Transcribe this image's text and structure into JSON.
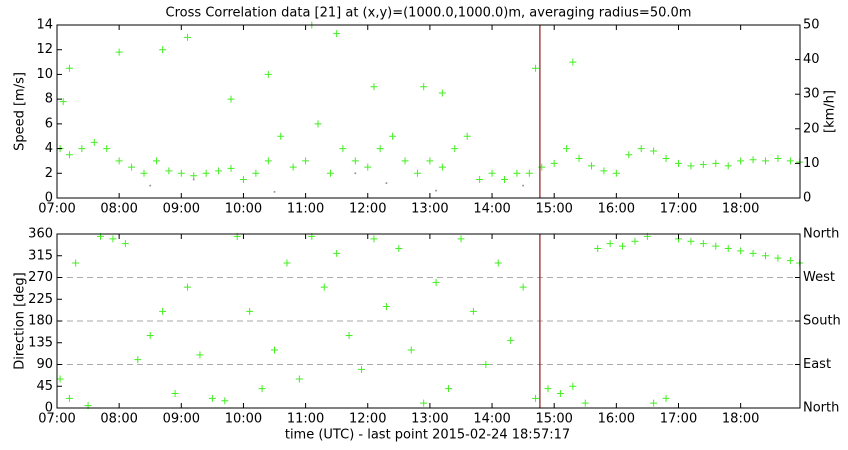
{
  "chart_data": [
    {
      "type": "scatter",
      "title": "Cross Correlation data [21] at (x,y)=(1000.0,1000.0)m, averaging radius=50.0m",
      "ylabel": "Speed [m/s]",
      "y2label": "[km/h]",
      "xlim": [
        7,
        18.955
      ],
      "xticks": [
        {
          "value": 7,
          "label": "07:00"
        },
        {
          "value": 8,
          "label": "08:00"
        },
        {
          "value": 9,
          "label": "09:00"
        },
        {
          "value": 10,
          "label": "10:00"
        },
        {
          "value": 11,
          "label": "11:00"
        },
        {
          "value": 12,
          "label": "12:00"
        },
        {
          "value": 13,
          "label": "13:00"
        },
        {
          "value": 14,
          "label": "14:00"
        },
        {
          "value": 15,
          "label": "15:00"
        },
        {
          "value": 16,
          "label": "16:00"
        },
        {
          "value": 17,
          "label": "17:00"
        },
        {
          "value": 18,
          "label": "18:00"
        }
      ],
      "ylim": [
        0,
        14
      ],
      "yticks": [
        0,
        2,
        4,
        6,
        8,
        10,
        12,
        14
      ],
      "y2lim": [
        0,
        50
      ],
      "y2ticks": [
        0,
        10,
        20,
        30,
        40,
        50
      ],
      "vline": {
        "x": 14.77,
        "color": "#8b1a1a"
      },
      "series": [
        {
          "color": "#44ee22",
          "marker": "plus",
          "x": [
            7.05,
            7.2,
            7.4,
            7.6,
            7.8,
            8.0,
            8.2,
            8.4,
            8.6,
            8.8,
            9.0,
            9.2,
            9.4,
            9.6,
            9.8,
            10.0,
            10.2,
            10.4,
            10.6,
            10.8,
            11.0,
            11.2,
            11.4,
            11.6,
            11.8,
            12.0,
            12.2,
            12.4,
            12.6,
            12.8,
            13.0,
            13.2,
            13.4,
            13.6,
            13.8,
            14.0,
            14.2,
            14.4,
            14.6,
            14.8,
            15.0,
            15.2,
            15.4,
            15.6,
            15.8,
            16.0,
            16.2,
            16.4,
            16.6,
            16.8,
            17.0,
            17.2,
            17.4,
            17.6,
            17.8,
            18.0,
            18.2,
            18.4,
            18.6,
            18.8,
            18.95
          ],
          "values": [
            4,
            3.5,
            4,
            4.5,
            4,
            3,
            2.5,
            2,
            3,
            2.2,
            2,
            1.8,
            2,
            2.2,
            2.4,
            1.5,
            2,
            3,
            5,
            2.5,
            3,
            6,
            2,
            4,
            3,
            2.5,
            4,
            5,
            3,
            2,
            3,
            2.5,
            4,
            5,
            1.5,
            2,
            1.5,
            2,
            2,
            2.5,
            2.8,
            4,
            3.2,
            2.6,
            2.2,
            2,
            3.5,
            4,
            3.8,
            3.2,
            2.8,
            2.6,
            2.7,
            2.8,
            2.6,
            3,
            3.1,
            3,
            3.2,
            3,
            2.9
          ]
        },
        {
          "color": "#44ee22",
          "marker": "plus",
          "x": [
            7.2,
            8.0,
            8.7,
            9.1,
            10.4,
            11.1,
            11.5,
            12.1,
            13.2,
            14.7,
            15.3,
            7.1,
            9.8,
            12.9
          ],
          "values": [
            10.5,
            11.8,
            12,
            13,
            10,
            14,
            13.3,
            9,
            8.5,
            10.5,
            11,
            7.8,
            8,
            9
          ]
        },
        {
          "color": "#999999",
          "marker": "dot",
          "x": [
            8.5,
            10.5,
            12.3,
            13.1,
            14.5,
            9.2,
            11.8
          ],
          "values": [
            1,
            0.5,
            1.2,
            0.6,
            1,
            1.5,
            2
          ]
        }
      ]
    },
    {
      "type": "scatter",
      "ylabel": "Direction [deg]",
      "xlabel": "time (UTC) - last point 2015-02-24 18:57:17",
      "xlim": [
        7,
        18.955
      ],
      "xticks": [
        {
          "value": 7,
          "label": "07:00"
        },
        {
          "value": 8,
          "label": "08:00"
        },
        {
          "value": 9,
          "label": "09:00"
        },
        {
          "value": 10,
          "label": "10:00"
        },
        {
          "value": 11,
          "label": "11:00"
        },
        {
          "value": 12,
          "label": "12:00"
        },
        {
          "value": 13,
          "label": "13:00"
        },
        {
          "value": 14,
          "label": "14:00"
        },
        {
          "value": 15,
          "label": "15:00"
        },
        {
          "value": 16,
          "label": "16:00"
        },
        {
          "value": 17,
          "label": "17:00"
        },
        {
          "value": 18,
          "label": "18:00"
        }
      ],
      "ylim": [
        0,
        360
      ],
      "yticks": [
        0,
        45,
        90,
        135,
        180,
        225,
        270,
        315,
        360
      ],
      "y2lim": [
        0,
        360
      ],
      "y2ticks": [
        {
          "value": 0,
          "label": "North"
        },
        {
          "value": 90,
          "label": "East"
        },
        {
          "value": 180,
          "label": "South"
        },
        {
          "value": 270,
          "label": "West"
        },
        {
          "value": 360,
          "label": "North"
        }
      ],
      "hgrid": [
        90,
        180,
        270
      ],
      "vline": {
        "x": 14.77,
        "color": "#8b1a1a"
      },
      "series": [
        {
          "color": "#44ee22",
          "marker": "plus",
          "x": [
            7.05,
            7.2,
            7.3,
            7.5,
            7.7,
            7.9,
            8.1,
            8.3,
            8.5,
            8.7,
            8.9,
            9.1,
            9.3,
            9.5,
            9.7,
            9.9,
            10.1,
            10.3,
            10.5,
            10.7,
            10.9,
            11.1,
            11.3,
            11.5,
            11.7,
            11.9,
            12.1,
            12.3,
            12.5,
            12.7,
            12.9,
            13.1,
            13.3,
            13.5,
            13.7,
            13.9,
            14.1,
            14.3,
            14.5,
            14.7,
            14.9,
            15.1,
            15.3,
            15.5,
            15.7,
            15.9,
            16.1,
            16.3,
            16.5,
            16.6,
            16.8,
            17.0,
            17.2,
            17.4,
            17.6,
            17.8,
            18.0,
            18.2,
            18.4,
            18.6,
            18.8,
            18.95
          ],
          "values": [
            60,
            20,
            300,
            5,
            355,
            350,
            340,
            100,
            150,
            200,
            30,
            250,
            110,
            20,
            15,
            355,
            200,
            40,
            120,
            300,
            60,
            355,
            250,
            320,
            150,
            80,
            350,
            210,
            330,
            120,
            10,
            260,
            40,
            350,
            200,
            90,
            300,
            140,
            250,
            20,
            40,
            30,
            45,
            10,
            330,
            340,
            335,
            345,
            355,
            10,
            20,
            350,
            345,
            340,
            335,
            330,
            325,
            320,
            315,
            310,
            305,
            300
          ]
        }
      ]
    }
  ]
}
